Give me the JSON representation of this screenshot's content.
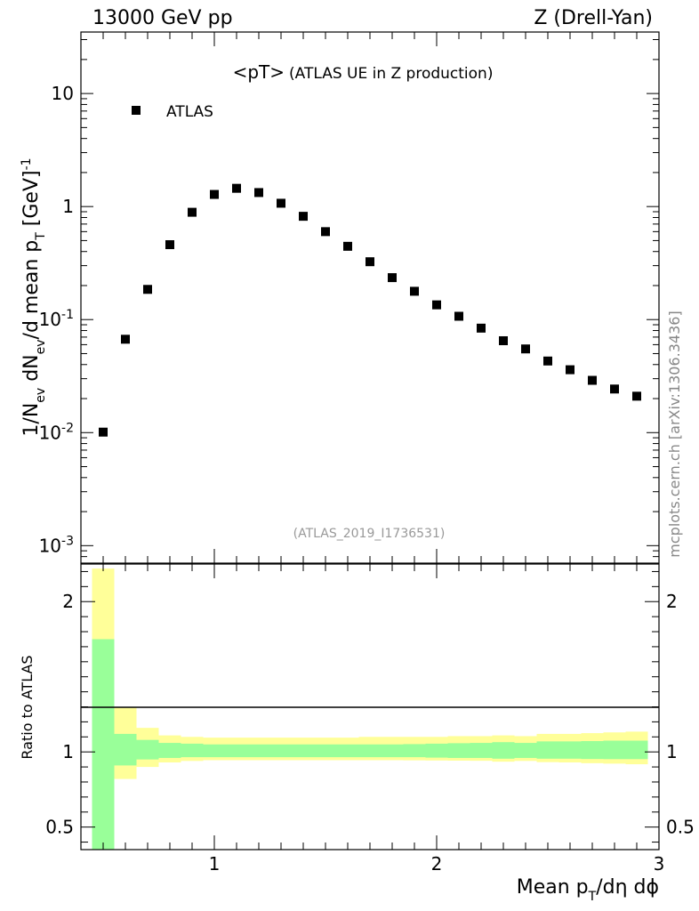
{
  "header": {
    "left": "13000 GeV pp",
    "right": "Z (Drell-Yan)"
  },
  "watermark": "mcplots.cern.ch [arXiv:1306.3436]",
  "chart_data": [
    {
      "type": "scatter",
      "title_main": "<pT>",
      "title_sub": "(ATLAS UE in Z production)",
      "analysis_id": "(ATLAS_2019_I1736531)",
      "ylabel": "1/N_ev dN_ev/d mean p_T [GeV]^-1",
      "yscale": "log",
      "xlim": [
        0.4,
        3.0
      ],
      "ylim": [
        0.0007,
        35
      ],
      "y_ticks": [
        {
          "value": 0.001,
          "label": "10^-3"
        },
        {
          "value": 0.01,
          "label": "10^-2"
        },
        {
          "value": 0.1,
          "label": "10^-1"
        },
        {
          "value": 1,
          "label": "1"
        },
        {
          "value": 10,
          "label": "10"
        }
      ],
      "series": [
        {
          "name": "ATLAS",
          "color": "#000000",
          "marker": "square",
          "x": [
            0.5,
            0.6,
            0.7,
            0.8,
            0.9,
            1.0,
            1.1,
            1.2,
            1.3,
            1.4,
            1.5,
            1.6,
            1.7,
            1.8,
            1.9,
            2.0,
            2.1,
            2.2,
            2.3,
            2.4,
            2.5,
            2.6,
            2.7,
            2.8,
            2.9
          ],
          "y": [
            0.0101,
            0.067,
            0.185,
            0.46,
            0.89,
            1.28,
            1.45,
            1.33,
            1.07,
            0.82,
            0.6,
            0.445,
            0.325,
            0.235,
            0.178,
            0.135,
            0.107,
            0.084,
            0.065,
            0.055,
            0.043,
            0.036,
            0.029,
            0.0243,
            0.021
          ]
        }
      ]
    },
    {
      "type": "area",
      "ylabel": "Ratio to ATLAS",
      "xlabel": "Mean p_T/dη dϕ",
      "xlim": [
        0.4,
        3.0
      ],
      "ylim": [
        0.35,
        2.25
      ],
      "x_ticks": [
        1,
        2,
        3
      ],
      "y_ticks": [
        0.5,
        1,
        2
      ],
      "reference_line": 1,
      "bin_edges": [
        0.45,
        0.55,
        0.65,
        0.75,
        0.85,
        0.95,
        1.05,
        1.15,
        1.25,
        1.35,
        1.45,
        1.55,
        1.65,
        1.75,
        1.85,
        1.95,
        2.05,
        2.15,
        2.25,
        2.35,
        2.45,
        2.55,
        2.65,
        2.75,
        2.85,
        2.95
      ],
      "bands": [
        {
          "name": "total uncertainty",
          "color": "#ffff99",
          "lo": [
            0.35,
            0.82,
            0.9,
            0.93,
            0.94,
            0.945,
            0.945,
            0.945,
            0.945,
            0.945,
            0.945,
            0.945,
            0.945,
            0.945,
            0.944,
            0.943,
            0.942,
            0.941,
            0.935,
            0.94,
            0.932,
            0.93,
            0.925,
            0.922,
            0.918
          ],
          "hi": [
            2.22,
            1.3,
            1.16,
            1.11,
            1.1,
            1.095,
            1.095,
            1.095,
            1.095,
            1.095,
            1.095,
            1.095,
            1.1,
            1.1,
            1.1,
            1.1,
            1.105,
            1.105,
            1.11,
            1.105,
            1.12,
            1.12,
            1.125,
            1.13,
            1.135
          ]
        },
        {
          "name": "stat uncertainty",
          "color": "#99ff99",
          "lo": [
            0.35,
            0.91,
            0.95,
            0.96,
            0.965,
            0.965,
            0.965,
            0.965,
            0.965,
            0.965,
            0.965,
            0.965,
            0.965,
            0.965,
            0.965,
            0.962,
            0.96,
            0.96,
            0.955,
            0.96,
            0.955,
            0.955,
            0.953,
            0.952,
            0.952
          ],
          "hi": [
            1.75,
            1.12,
            1.08,
            1.06,
            1.055,
            1.05,
            1.05,
            1.05,
            1.05,
            1.05,
            1.05,
            1.05,
            1.05,
            1.05,
            1.052,
            1.055,
            1.058,
            1.06,
            1.065,
            1.06,
            1.07,
            1.07,
            1.072,
            1.075,
            1.075
          ]
        }
      ]
    }
  ]
}
